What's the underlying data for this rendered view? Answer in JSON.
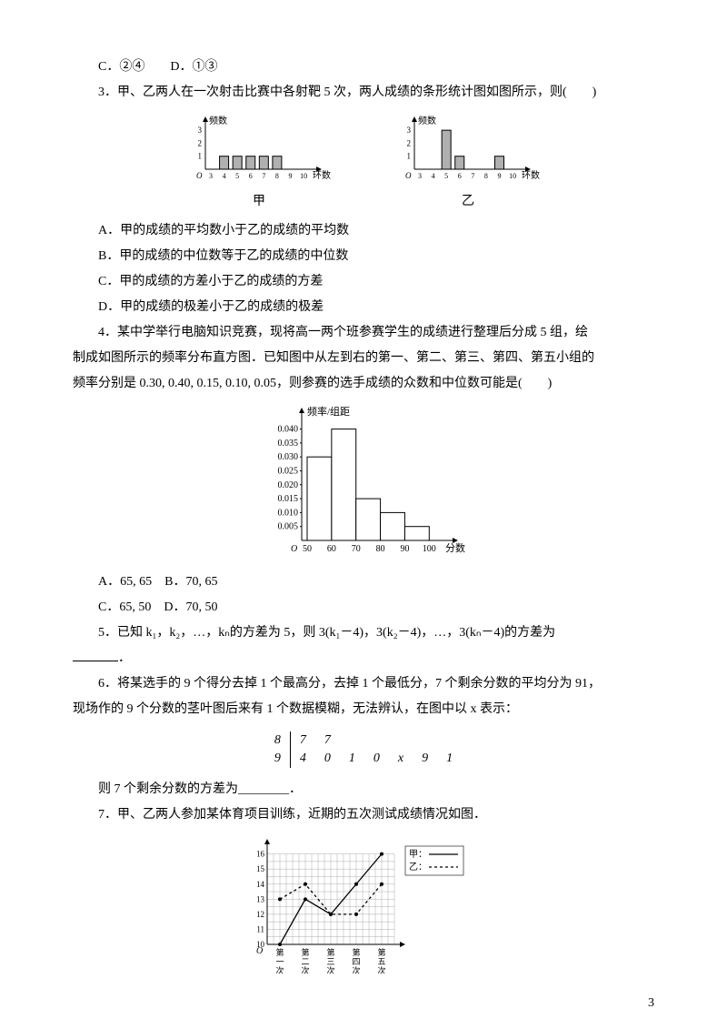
{
  "options_cd": "C．②④　　D．①③",
  "q3": {
    "stem": "3．甲、乙两人在一次射击比赛中各射靶 5 次，两人成绩的条形统计图如图所示，则(　　)",
    "chart_jia": {
      "type": "bar",
      "ylabel": "频数",
      "xlabel": "环数",
      "x_ticks": [
        3,
        4,
        5,
        6,
        7,
        8,
        9,
        10
      ],
      "categories": [
        4,
        5,
        6,
        7,
        8
      ],
      "values": [
        1,
        1,
        1,
        1,
        1
      ],
      "y_ticks": [
        1,
        2,
        3
      ],
      "ylim": [
        0,
        3.5
      ],
      "bar_color": "#b0b0b0",
      "axis_color": "#000000",
      "label": "甲"
    },
    "chart_yi": {
      "type": "bar",
      "ylabel": "频数",
      "xlabel": "环数",
      "x_ticks": [
        3,
        4,
        5,
        6,
        7,
        8,
        9,
        10
      ],
      "categories": [
        5,
        6,
        9
      ],
      "values": [
        3,
        1,
        1
      ],
      "y_ticks": [
        1,
        2,
        3
      ],
      "ylim": [
        0,
        3.5
      ],
      "bar_color": "#b0b0b0",
      "axis_color": "#000000",
      "label": "乙"
    },
    "a": "A．甲的成绩的平均数小于乙的成绩的平均数",
    "b": "B．甲的成绩的中位数等于乙的成绩的中位数",
    "c": "C．甲的成绩的方差小于乙的成绩的方差",
    "d": "D．甲的成绩的极差小于乙的成绩的极差"
  },
  "q4": {
    "stem1": "4．某中学举行电脑知识竞赛，现将高一两个班参赛学生的成绩进行整理后分成 5 组，绘",
    "stem2": "制成如图所示的频率分布直方图．已知图中从左到右的第一、第二、第三、第四、第五小组的",
    "stem3": "频率分别是 0.30, 0.40, 0.15, 0.10, 0.05，则参赛的选手成绩的众数和中位数可能是(　　)",
    "histogram": {
      "type": "histogram",
      "ylabel": "频率/组距",
      "xlabel": "分数",
      "x_edges": [
        50,
        60,
        70,
        80,
        90,
        100
      ],
      "heights": [
        0.03,
        0.04,
        0.015,
        0.01,
        0.005
      ],
      "y_ticks": [
        0.005,
        0.01,
        0.015,
        0.02,
        0.025,
        0.03,
        0.035,
        0.04
      ],
      "bar_color": "#ffffff",
      "border_color": "#000000",
      "axis_color": "#000000"
    },
    "a": "A．65, 65　B．70, 65",
    "c": "C．65, 50　D．70, 50"
  },
  "q5": {
    "stem": "5．已知 k₁，k₂，…，kₙ的方差为 5，则 3(k₁－4)，3(k₂－4)，…，3(kₙ－4)的方差为"
  },
  "q6": {
    "stem1": "6．将某选手的 9 个得分去掉 1 个最高分，去掉 1 个最低分，7 个剩余分数的平均分为 91，",
    "stem2": "现场作的 9 个分数的茎叶图后来有 1 个数据模糊，无法辨认，在图中以 x 表示：",
    "stemleaf": {
      "rows": [
        {
          "stem": "8",
          "leaves": [
            "7",
            "7"
          ]
        },
        {
          "stem": "9",
          "leaves": [
            "4",
            "0",
            "1",
            "0",
            "x",
            "9",
            "1"
          ]
        }
      ]
    },
    "tail": "则 7 个剩余分数的方差为________．"
  },
  "q7": {
    "stem": "7．甲、乙两人参加某体育项目训练，近期的五次测试成绩情况如图．",
    "linechart": {
      "type": "line",
      "y_ticks": [
        10,
        11,
        12,
        13,
        14,
        15,
        16
      ],
      "x_labels": [
        "第一次",
        "第二次",
        "第三次",
        "第四次",
        "第五次"
      ],
      "series": [
        {
          "name": "甲",
          "style": "solid",
          "color": "#000000",
          "values": [
            10,
            13,
            12,
            14,
            16
          ]
        },
        {
          "name": "乙",
          "style": "dashed",
          "color": "#000000",
          "values": [
            13,
            14,
            12,
            12,
            14
          ]
        }
      ],
      "legend": {
        "jia": "甲：",
        "yi": "乙："
      },
      "grid_color": "#999999"
    }
  },
  "page_num": "3"
}
